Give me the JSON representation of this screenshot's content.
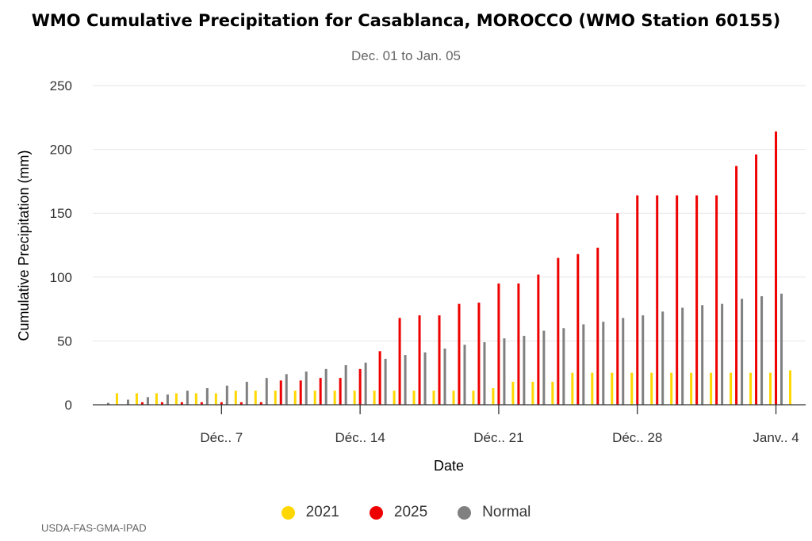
{
  "chart_data": {
    "type": "bar",
    "title": "WMO Cumulative Precipitation for Casablanca, MOROCCO (WMO Station 60155)",
    "subtitle": "Dec. 01 to Jan. 05",
    "xlabel": "Date",
    "ylabel": "Cumulative Precipitation (mm)",
    "ylim": [
      0,
      250
    ],
    "yticks": [
      0,
      50,
      100,
      150,
      200,
      250
    ],
    "xticks": [
      {
        "index": 6,
        "label": "Déc.. 7"
      },
      {
        "index": 13,
        "label": "Déc.. 14"
      },
      {
        "index": 20,
        "label": "Déc.. 21"
      },
      {
        "index": 27,
        "label": "Déc.. 28"
      },
      {
        "index": 34,
        "label": "Janv.. 4"
      }
    ],
    "grid": true,
    "legend_position": "bottom",
    "categories": [
      "Dec 1",
      "Dec 2",
      "Dec 3",
      "Dec 4",
      "Dec 5",
      "Dec 6",
      "Dec 7",
      "Dec 8",
      "Dec 9",
      "Dec 10",
      "Dec 11",
      "Dec 12",
      "Dec 13",
      "Dec 14",
      "Dec 15",
      "Dec 16",
      "Dec 17",
      "Dec 18",
      "Dec 19",
      "Dec 20",
      "Dec 21",
      "Dec 22",
      "Dec 23",
      "Dec 24",
      "Dec 25",
      "Dec 26",
      "Dec 27",
      "Dec 28",
      "Dec 29",
      "Dec 30",
      "Dec 31",
      "Jan 1",
      "Jan 2",
      "Jan 3",
      "Jan 4",
      "Jan 5"
    ],
    "series": [
      {
        "name": "2021",
        "color": "#FFD700",
        "values": [
          0,
          9,
          9,
          9,
          9,
          9,
          9,
          11,
          11,
          11,
          11,
          11,
          11,
          11,
          11,
          11,
          11,
          11,
          11,
          11,
          13,
          18,
          18,
          18,
          25,
          25,
          25,
          25,
          25,
          25,
          25,
          25,
          25,
          25,
          25,
          27
        ]
      },
      {
        "name": "2025",
        "color": "#EE0000",
        "values": [
          0,
          0,
          2,
          2,
          2,
          2,
          2,
          2,
          2,
          19,
          19,
          21,
          21,
          28,
          42,
          68,
          70,
          70,
          79,
          80,
          95,
          95,
          102,
          115,
          118,
          123,
          150,
          164,
          164,
          164,
          164,
          164,
          187,
          196,
          214,
          0
        ]
      },
      {
        "name": "Normal",
        "color": "#808080",
        "values": [
          1.5,
          4,
          6,
          8,
          11,
          13,
          15,
          18,
          21,
          24,
          26,
          28,
          31,
          33,
          36,
          39,
          41,
          44,
          47,
          49,
          52,
          54,
          58,
          60,
          63,
          65,
          68,
          70,
          73,
          76,
          78,
          79,
          83,
          85,
          87,
          0
        ]
      }
    ]
  },
  "credit": "USDA-FAS-GMA-IPAD"
}
